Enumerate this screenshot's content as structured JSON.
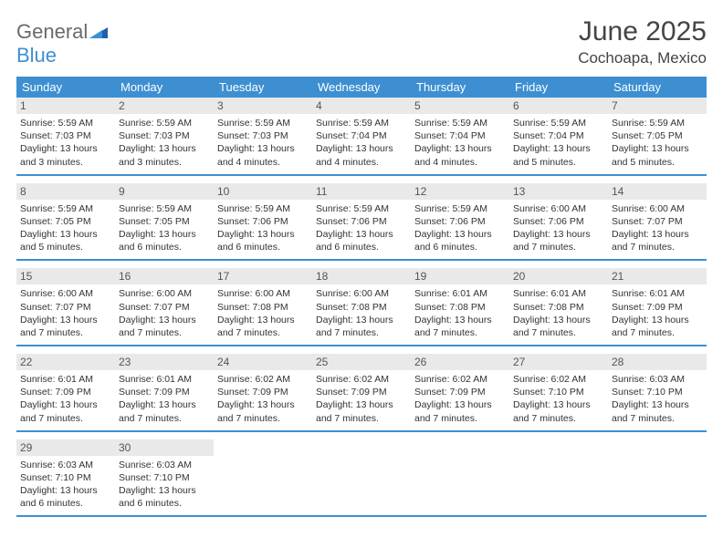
{
  "brand": {
    "general": "General",
    "blue": "Blue"
  },
  "header": {
    "title": "June 2025",
    "location": "Cochoapa, Mexico"
  },
  "labels": {
    "sunrise": "Sunrise: ",
    "sunset": "Sunset: ",
    "daylight": "Daylight: "
  },
  "colors": {
    "header_bar": "#3d8fd1",
    "daynum_bg": "#e9e9e9",
    "rule": "#3d8fd1",
    "text": "#333333",
    "logo_gray": "#6a6a6a",
    "logo_blue": "#3d8fd1"
  },
  "dayNames": [
    "Sunday",
    "Monday",
    "Tuesday",
    "Wednesday",
    "Thursday",
    "Friday",
    "Saturday"
  ],
  "weeks": [
    [
      {
        "n": 1,
        "sr": "5:59 AM",
        "ss": "7:03 PM",
        "dl": "13 hours and 3 minutes."
      },
      {
        "n": 2,
        "sr": "5:59 AM",
        "ss": "7:03 PM",
        "dl": "13 hours and 3 minutes."
      },
      {
        "n": 3,
        "sr": "5:59 AM",
        "ss": "7:03 PM",
        "dl": "13 hours and 4 minutes."
      },
      {
        "n": 4,
        "sr": "5:59 AM",
        "ss": "7:04 PM",
        "dl": "13 hours and 4 minutes."
      },
      {
        "n": 5,
        "sr": "5:59 AM",
        "ss": "7:04 PM",
        "dl": "13 hours and 4 minutes."
      },
      {
        "n": 6,
        "sr": "5:59 AM",
        "ss": "7:04 PM",
        "dl": "13 hours and 5 minutes."
      },
      {
        "n": 7,
        "sr": "5:59 AM",
        "ss": "7:05 PM",
        "dl": "13 hours and 5 minutes."
      }
    ],
    [
      {
        "n": 8,
        "sr": "5:59 AM",
        "ss": "7:05 PM",
        "dl": "13 hours and 5 minutes."
      },
      {
        "n": 9,
        "sr": "5:59 AM",
        "ss": "7:05 PM",
        "dl": "13 hours and 6 minutes."
      },
      {
        "n": 10,
        "sr": "5:59 AM",
        "ss": "7:06 PM",
        "dl": "13 hours and 6 minutes."
      },
      {
        "n": 11,
        "sr": "5:59 AM",
        "ss": "7:06 PM",
        "dl": "13 hours and 6 minutes."
      },
      {
        "n": 12,
        "sr": "5:59 AM",
        "ss": "7:06 PM",
        "dl": "13 hours and 6 minutes."
      },
      {
        "n": 13,
        "sr": "6:00 AM",
        "ss": "7:06 PM",
        "dl": "13 hours and 7 minutes."
      },
      {
        "n": 14,
        "sr": "6:00 AM",
        "ss": "7:07 PM",
        "dl": "13 hours and 7 minutes."
      }
    ],
    [
      {
        "n": 15,
        "sr": "6:00 AM",
        "ss": "7:07 PM",
        "dl": "13 hours and 7 minutes."
      },
      {
        "n": 16,
        "sr": "6:00 AM",
        "ss": "7:07 PM",
        "dl": "13 hours and 7 minutes."
      },
      {
        "n": 17,
        "sr": "6:00 AM",
        "ss": "7:08 PM",
        "dl": "13 hours and 7 minutes."
      },
      {
        "n": 18,
        "sr": "6:00 AM",
        "ss": "7:08 PM",
        "dl": "13 hours and 7 minutes."
      },
      {
        "n": 19,
        "sr": "6:01 AM",
        "ss": "7:08 PM",
        "dl": "13 hours and 7 minutes."
      },
      {
        "n": 20,
        "sr": "6:01 AM",
        "ss": "7:08 PM",
        "dl": "13 hours and 7 minutes."
      },
      {
        "n": 21,
        "sr": "6:01 AM",
        "ss": "7:09 PM",
        "dl": "13 hours and 7 minutes."
      }
    ],
    [
      {
        "n": 22,
        "sr": "6:01 AM",
        "ss": "7:09 PM",
        "dl": "13 hours and 7 minutes."
      },
      {
        "n": 23,
        "sr": "6:01 AM",
        "ss": "7:09 PM",
        "dl": "13 hours and 7 minutes."
      },
      {
        "n": 24,
        "sr": "6:02 AM",
        "ss": "7:09 PM",
        "dl": "13 hours and 7 minutes."
      },
      {
        "n": 25,
        "sr": "6:02 AM",
        "ss": "7:09 PM",
        "dl": "13 hours and 7 minutes."
      },
      {
        "n": 26,
        "sr": "6:02 AM",
        "ss": "7:09 PM",
        "dl": "13 hours and 7 minutes."
      },
      {
        "n": 27,
        "sr": "6:02 AM",
        "ss": "7:10 PM",
        "dl": "13 hours and 7 minutes."
      },
      {
        "n": 28,
        "sr": "6:03 AM",
        "ss": "7:10 PM",
        "dl": "13 hours and 7 minutes."
      }
    ],
    [
      {
        "n": 29,
        "sr": "6:03 AM",
        "ss": "7:10 PM",
        "dl": "13 hours and 6 minutes."
      },
      {
        "n": 30,
        "sr": "6:03 AM",
        "ss": "7:10 PM",
        "dl": "13 hours and 6 minutes."
      },
      null,
      null,
      null,
      null,
      null
    ]
  ]
}
